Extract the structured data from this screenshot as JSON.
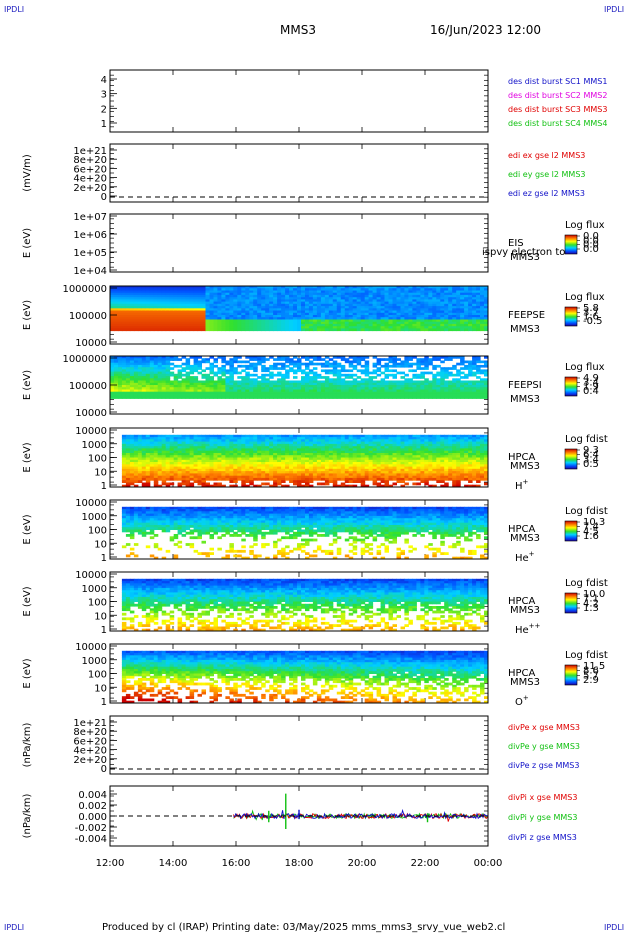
{
  "header": {
    "corner_left": "IPDLI",
    "corner_right": "IPDLI",
    "title": "MMS3",
    "datetime": "16/Jun/2023 12:00"
  },
  "footer": {
    "corner_left": "IPDLI",
    "corner_right": "IPDLI",
    "text": "Produced by cl (IRAP)   Printing date: 03/May/2025   mms_mms3_srvy_vue_web2.cl"
  },
  "colors": {
    "blue": "#1010c8",
    "magenta": "#e000e0",
    "red": "#e00000",
    "green": "#10c010"
  },
  "time_axis": {
    "ticks": [
      "12:00",
      "14:00",
      "16:00",
      "18:00",
      "20:00",
      "22:00",
      "00:00"
    ]
  },
  "chart_data": [
    {
      "id": "dist",
      "type": "line",
      "ylabel": "",
      "yticks": [
        "1",
        "2",
        "3",
        "4"
      ],
      "legend": [
        {
          "text": "des dist burst SC1 MMS1",
          "color": "blue"
        },
        {
          "text": "des dist burst SC2 MMS2",
          "color": "magenta"
        },
        {
          "text": "des dist burst SC3 MMS3",
          "color": "red"
        },
        {
          "text": "des dist burst SC4 MMS4",
          "color": "green"
        }
      ]
    },
    {
      "id": "edi",
      "type": "line",
      "ylabel": "(mV/m)",
      "yticks": [
        "0",
        "2e+20",
        "4e+20",
        "6e+20",
        "8e+20",
        "1e+21"
      ],
      "dashed_zero": true,
      "legend": [
        {
          "text": "edi ex gse l2 MMS3",
          "color": "red"
        },
        {
          "text": "edi ey gse l2 MMS3",
          "color": "green"
        },
        {
          "text": "edi ez gse l2 MMS3",
          "color": "blue"
        }
      ]
    },
    {
      "id": "eis",
      "type": "heatmap",
      "ylabel": "E (eV)",
      "yticks": [
        "1e+04",
        "1e+05",
        "1e+06",
        "1e+07"
      ],
      "labels": [
        "EIS",
        "MMS3"
      ],
      "overlap_text": "ispvy electron to",
      "colorbar": {
        "title": "Log flux",
        "values": [
          "0.0",
          "0.0",
          "0.0",
          "0.0"
        ]
      }
    },
    {
      "id": "feepse",
      "type": "heatmap",
      "ylabel": "E (eV)",
      "yticks": [
        "10000",
        "100000",
        "1000000"
      ],
      "labels": [
        "FEEPSE",
        "MMS3"
      ],
      "colorbar": {
        "title": "Log flux",
        "values": [
          "5.8",
          "3.7",
          "1.6",
          "-0.5"
        ]
      }
    },
    {
      "id": "feepsi",
      "type": "heatmap",
      "ylabel": "E (eV)",
      "yticks": [
        "10000",
        "100000",
        "1000000"
      ],
      "labels": [
        "FEEPSI",
        "MMS3"
      ],
      "colorbar": {
        "title": "Log flux",
        "values": [
          "4.9",
          "3.4",
          "1.9",
          "0.4"
        ]
      }
    },
    {
      "id": "hpca_h",
      "type": "heatmap",
      "ylabel": "E (eV)",
      "yticks": [
        "1",
        "10",
        "100",
        "1000",
        "10000"
      ],
      "labels": [
        "HPCA",
        "MMS3"
      ],
      "species": "H",
      "species_sup": "+",
      "colorbar": {
        "title": "Log fdist",
        "values": [
          "9.3",
          "6.4",
          "3.4",
          "0.5"
        ]
      }
    },
    {
      "id": "hpca_he",
      "type": "heatmap",
      "ylabel": "E (eV)",
      "yticks": [
        "1",
        "10",
        "100",
        "1000",
        "10000"
      ],
      "labels": [
        "HPCA",
        "MMS3"
      ],
      "species": "He",
      "species_sup": "+",
      "colorbar": {
        "title": "Log fdist",
        "values": [
          "10.3",
          "7.4",
          "4.5",
          "1.6"
        ]
      }
    },
    {
      "id": "hpca_hepp",
      "type": "heatmap",
      "ylabel": "E (eV)",
      "yticks": [
        "1",
        "10",
        "100",
        "1000",
        "10000"
      ],
      "labels": [
        "HPCA",
        "MMS3"
      ],
      "species": "He",
      "species_sup": "++",
      "colorbar": {
        "title": "Log fdist",
        "values": [
          "10.0",
          "7.1",
          "4.2",
          "1.3"
        ]
      }
    },
    {
      "id": "hpca_o",
      "type": "heatmap",
      "ylabel": "E (eV)",
      "yticks": [
        "1",
        "10",
        "100",
        "1000",
        "10000"
      ],
      "labels": [
        "HPCA",
        "MMS3"
      ],
      "species": "O",
      "species_sup": "+",
      "colorbar": {
        "title": "Log fdist",
        "values": [
          "11.5",
          "8.6",
          "5.7",
          "2.9"
        ]
      }
    },
    {
      "id": "divpe",
      "type": "line",
      "ylabel": "(nPa/km)",
      "yticks": [
        "0",
        "2e+20",
        "4e+20",
        "6e+20",
        "8e+20",
        "1e+21"
      ],
      "dashed_zero": true,
      "legend": [
        {
          "text": "divPe x gse MMS3",
          "color": "red"
        },
        {
          "text": "divPe y gse MMS3",
          "color": "green"
        },
        {
          "text": "divPe z gse MMS3",
          "color": "blue"
        }
      ]
    },
    {
      "id": "divpi",
      "type": "line",
      "ylabel": "(nPa/km)",
      "yticks": [
        "-0.004",
        "-0.002",
        "0.000",
        "0.002",
        "0.004"
      ],
      "ylim": [
        -0.005,
        0.005
      ],
      "dashed_zero": true,
      "data_start_time": "15:55",
      "legend": [
        {
          "text": "divPi x gse MMS3",
          "color": "red"
        },
        {
          "text": "divPi y gse MMS3",
          "color": "green"
        },
        {
          "text": "divPi z gse MMS3",
          "color": "blue"
        }
      ]
    }
  ]
}
